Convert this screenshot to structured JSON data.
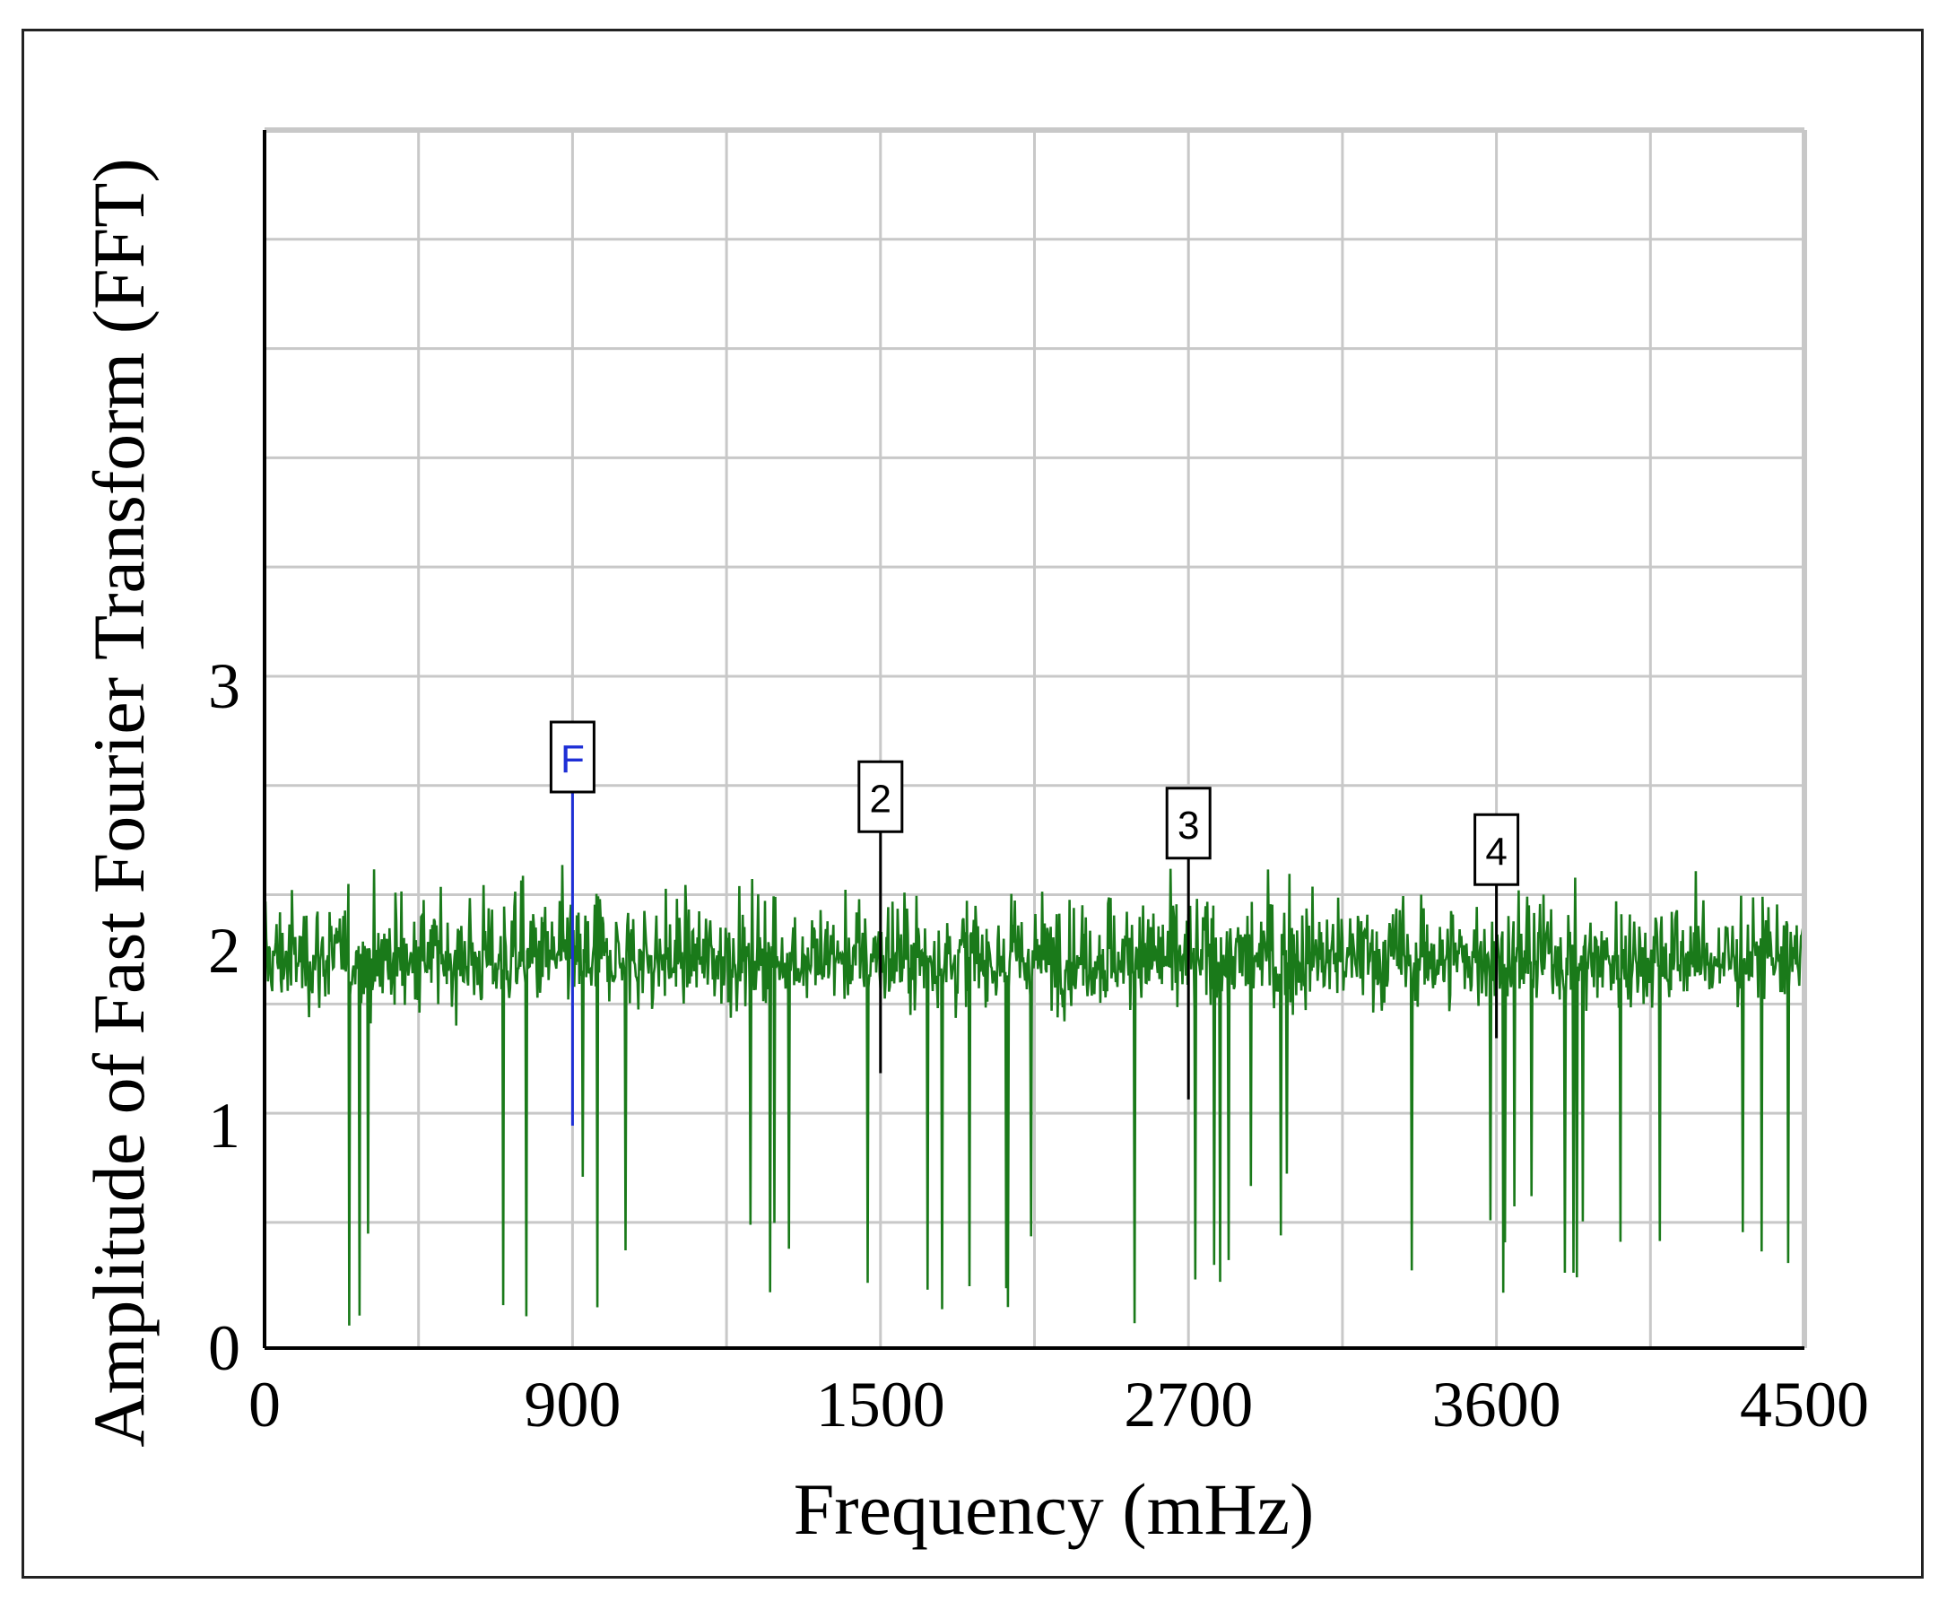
{
  "chart_data": {
    "type": "line",
    "title": "",
    "xlabel": "Frequency (mHz)",
    "ylabel": "Amplitude of Fast Fourier Transform (FFT)",
    "x_tick_labels": [
      "0",
      "900",
      "1500",
      "2700",
      "3600",
      "4500"
    ],
    "y_tick_labels": [
      "0",
      "1",
      "2",
      "3"
    ],
    "grid": true,
    "series": [
      {
        "color": "#1a7a1a",
        "description_values": {
          "x_range": [
            0,
            4500
          ],
          "baseline": 1.95,
          "typical_band": [
            1.2,
            2.6
          ],
          "min_dips": 0.1,
          "max_peaks": 2.75
        }
      }
    ],
    "markers": [
      {
        "label": "F",
        "x": 900,
        "peak": 2.6,
        "low": 1.0,
        "color": "#1e2fd6"
      },
      {
        "label": "2",
        "x": 1800,
        "peak": 2.45,
        "low": 1.3,
        "color": "#000000"
      },
      {
        "label": "3",
        "x": 2700,
        "peak": 2.35,
        "low": 1.15,
        "color": "#000000"
      },
      {
        "label": "4",
        "x": 3600,
        "peak": 2.25,
        "low": 1.5,
        "color": "#000000"
      }
    ]
  }
}
